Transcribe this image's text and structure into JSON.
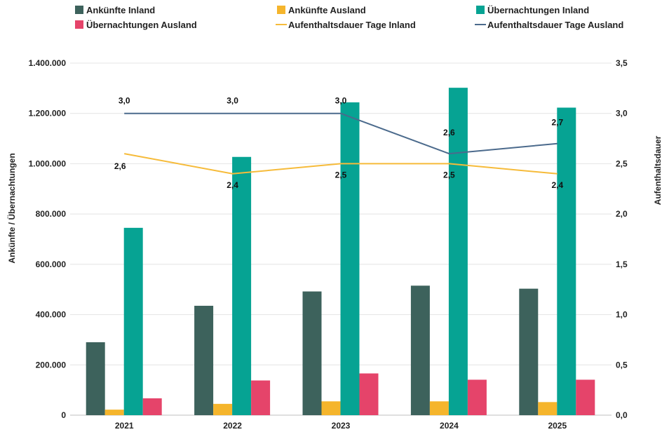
{
  "chart_data": {
    "type": "bar",
    "categories": [
      "2021",
      "2022",
      "2023",
      "2024",
      "2025"
    ],
    "series": [
      {
        "name": "Ankünfte Inland",
        "kind": "bar",
        "axis": "left",
        "color": "#3d625c",
        "values": [
          290000,
          435000,
          492000,
          515000,
          503000
        ]
      },
      {
        "name": "Ankünfte Ausland",
        "kind": "bar",
        "axis": "left",
        "color": "#f5b52c",
        "values": [
          22000,
          45000,
          55000,
          55000,
          52000
        ]
      },
      {
        "name": "Übernachtungen Inland",
        "kind": "bar",
        "axis": "left",
        "color": "#06a393",
        "values": [
          745000,
          1027000,
          1244000,
          1302000,
          1223000
        ]
      },
      {
        "name": "Übernachtungen Ausland",
        "kind": "bar",
        "axis": "left",
        "color": "#e5446a",
        "values": [
          67000,
          138000,
          166000,
          141000,
          141000
        ]
      },
      {
        "name": "Aufenthaltsdauer Tage Inland",
        "kind": "line",
        "axis": "right",
        "color": "#f6bb3a",
        "values": [
          2.6,
          2.4,
          2.5,
          2.5,
          2.4
        ]
      },
      {
        "name": "Aufenthaltsdauer Tage Ausland",
        "kind": "line",
        "axis": "right",
        "color": "#4b6a8c",
        "values": [
          3.0,
          3.0,
          3.0,
          2.6,
          2.7
        ]
      }
    ],
    "data_labels": {
      "Aufenthaltsdauer Tage Inland": [
        "2,6",
        "2,4",
        "2,5",
        "2,5",
        "2,4"
      ],
      "Aufenthaltsdauer Tage Ausland": [
        "3,0",
        "3,0",
        "3,0",
        "2,6",
        "2,7"
      ]
    },
    "ylabel": "Ankünfte / Übernachtungen",
    "y2label": "Aufenthaltsdauer",
    "ylim": [
      0,
      1400000
    ],
    "y2lim": [
      0,
      3.5
    ],
    "yticks": [
      "0",
      "200.000",
      "400.000",
      "600.000",
      "800.000",
      "1.000.000",
      "1.200.000",
      "1.400.000"
    ],
    "y2ticks": [
      "0,0",
      "0,5",
      "1,0",
      "1,5",
      "2,0",
      "2,5",
      "3,0",
      "3,5"
    ],
    "grid": true,
    "legend_position": "top"
  }
}
